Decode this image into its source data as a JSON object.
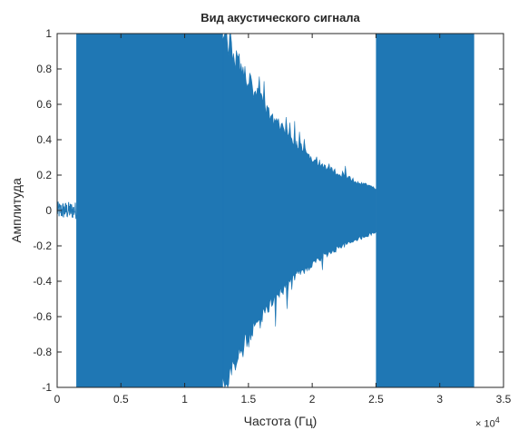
{
  "chart_data": {
    "type": "line",
    "title": "Вид акустического сигнала",
    "xlabel": "Частота (Гц)",
    "ylabel": "Амплитуда",
    "x_exponent_base": "× 10",
    "x_exponent_power": "4",
    "xlim": [
      0,
      35000
    ],
    "ylim": [
      -1,
      1
    ],
    "xticks": [
      0,
      5000,
      10000,
      15000,
      20000,
      25000,
      30000,
      35000
    ],
    "xtick_labels": [
      "0",
      "0.5",
      "1",
      "1.5",
      "2",
      "2.5",
      "3",
      "3.5"
    ],
    "yticks": [
      1,
      0.8,
      0.6,
      0.4,
      0.2,
      0,
      -0.2,
      -0.4,
      -0.6,
      -0.8,
      -1
    ],
    "ytick_labels": [
      "1",
      "0.8",
      "0.6",
      "0.4",
      "0.2",
      "0",
      "-0.2",
      "-0.4",
      "-0.6",
      "-0.8",
      "-1"
    ],
    "grid": false,
    "color": "#1f77b4",
    "series": [
      {
        "segments": [
          {
            "x_start": 0,
            "x_end": 1500,
            "amplitude": 0.05,
            "shape": "low-noise"
          },
          {
            "x_start": 1500,
            "x_end": 13000,
            "amplitude": 1.0,
            "shape": "saturated"
          },
          {
            "x_start": 13000,
            "x_end": 25000,
            "amplitude_start": 1.0,
            "amplitude_end": 0.12,
            "shape": "decaying"
          },
          {
            "x_start": 25000,
            "x_end": 32700,
            "amplitude": 1.0,
            "shape": "saturated"
          }
        ]
      }
    ]
  }
}
